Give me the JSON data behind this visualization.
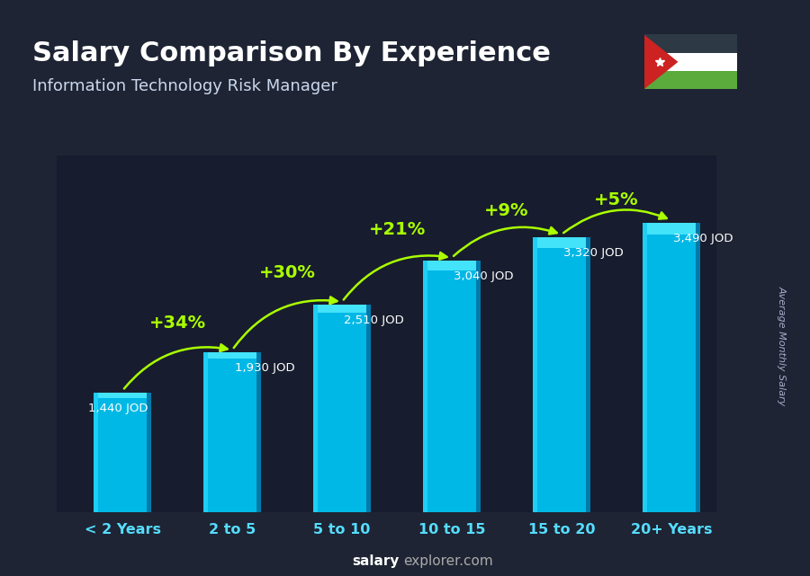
{
  "title": "Salary Comparison By Experience",
  "subtitle": "Information Technology Risk Manager",
  "categories": [
    "< 2 Years",
    "2 to 5",
    "5 to 10",
    "10 to 15",
    "15 to 20",
    "20+ Years"
  ],
  "values": [
    1440,
    1930,
    2510,
    3040,
    3320,
    3490
  ],
  "value_labels": [
    "1,440 JOD",
    "1,930 JOD",
    "2,510 JOD",
    "3,040 JOD",
    "3,320 JOD",
    "3,490 JOD"
  ],
  "pct_changes": [
    "+34%",
    "+30%",
    "+21%",
    "+9%",
    "+5%"
  ],
  "bar_color_main": "#00b8e6",
  "bar_color_light": "#33ddff",
  "bar_color_dark": "#007aaa",
  "bar_color_top": "#55eeff",
  "background_dark": "#1a1f2e",
  "text_white": "#ffffff",
  "text_cyan": "#88eeff",
  "text_green": "#aaff00",
  "ylabel": "Average Monthly Salary",
  "footer_salary": "salary",
  "footer_rest": "explorer.com",
  "ylim_max": 4300,
  "bar_width": 0.52,
  "flag_stripes": [
    "#2c3e50",
    "#ffffff",
    "#4caf50"
  ],
  "flag_triangle": "#e74c3c",
  "jordan_black": "#2d3a45",
  "jordan_white": "#ffffff",
  "jordan_green": "#5aaa3c",
  "jordan_red": "#cc2222"
}
